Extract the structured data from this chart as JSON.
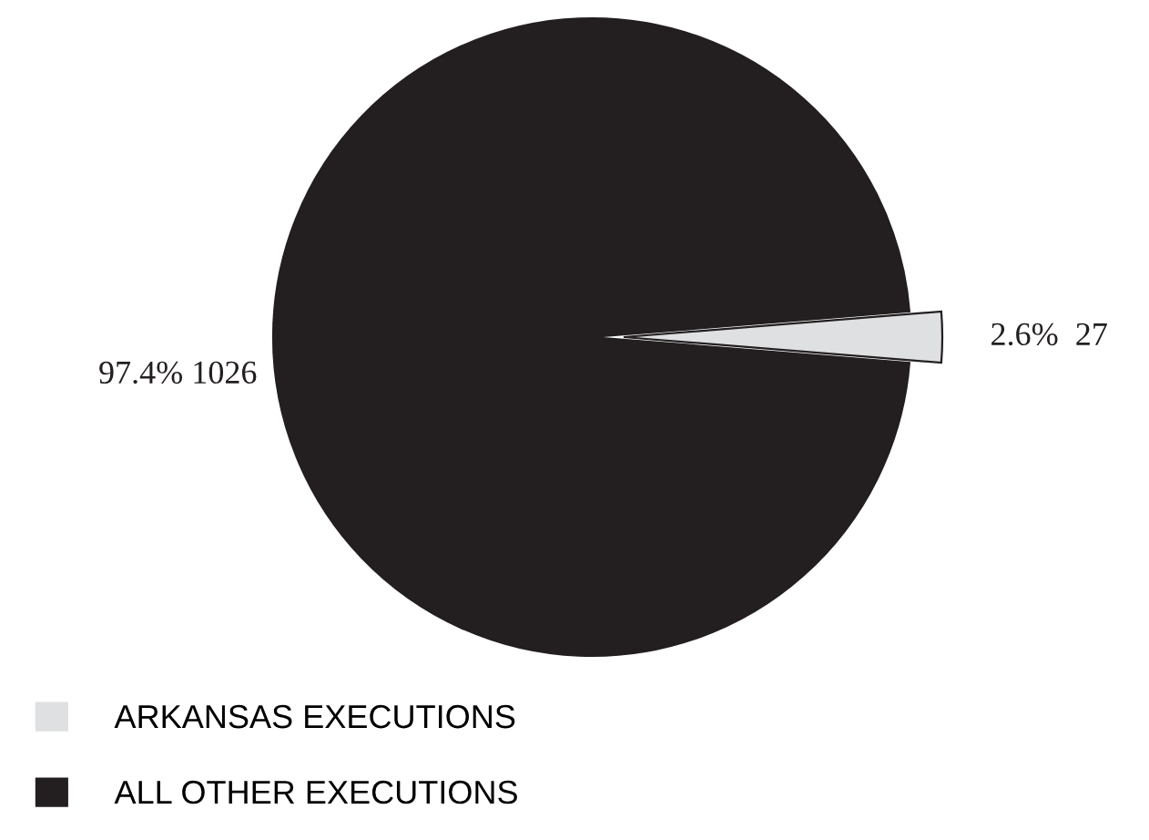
{
  "chart_data": {
    "type": "pie",
    "categories": [
      "ARKANSAS EXECUTIONS",
      "ALL OTHER EXECUTIONS"
    ],
    "values": [
      27,
      1026
    ],
    "colors": [
      "#dfe0e2",
      "#231f20"
    ],
    "value_labels": [
      "2.6%  27",
      "97.4% 1026"
    ],
    "legend": "bottom left"
  }
}
